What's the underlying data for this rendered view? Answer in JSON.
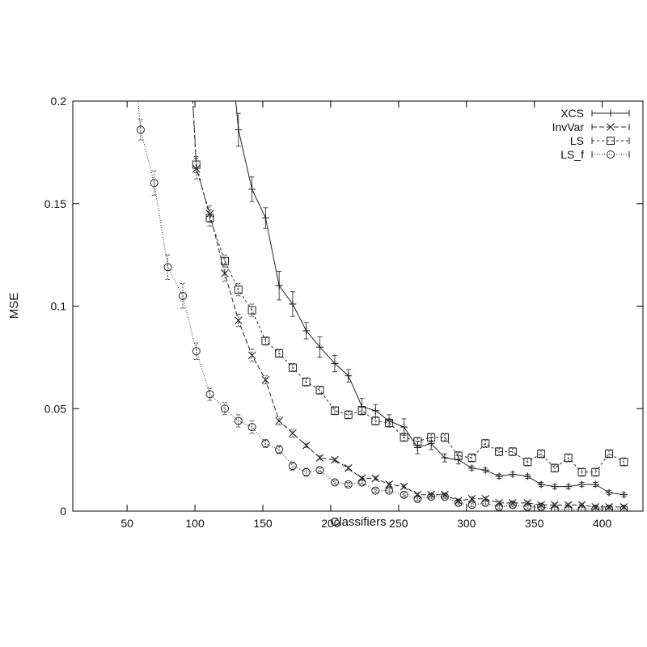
{
  "chart_data": {
    "type": "line",
    "title": "",
    "xlabel": "Classifiers",
    "ylabel": "MSE",
    "xlim": [
      10,
      430
    ],
    "ylim": [
      0,
      0.2
    ],
    "xticks": [
      50,
      100,
      150,
      200,
      250,
      300,
      350,
      400
    ],
    "yticks": [
      0,
      0.05,
      0.1,
      0.15,
      0.2
    ],
    "ytick_labels": [
      "0",
      "0.05",
      "0.1",
      "0.15",
      "0.2"
    ],
    "grid": false,
    "legend_position": "top-right",
    "series": [
      {
        "name": "XCS",
        "marker": "plus",
        "dash": "none",
        "x": [
          132,
          142,
          152,
          162,
          172,
          182,
          192,
          203,
          213,
          223,
          233,
          243,
          254,
          264,
          274,
          284,
          294,
          304,
          314,
          324,
          334,
          345,
          355,
          365,
          375,
          385,
          395,
          405,
          416
        ],
        "y": [
          0.186,
          0.157,
          0.143,
          0.11,
          0.101,
          0.088,
          0.08,
          0.072,
          0.066,
          0.051,
          0.049,
          0.044,
          0.041,
          0.031,
          0.033,
          0.026,
          0.025,
          0.021,
          0.02,
          0.017,
          0.018,
          0.017,
          0.013,
          0.012,
          0.012,
          0.013,
          0.013,
          0.009,
          0.008
        ],
        "err": [
          0.008,
          0.006,
          0.005,
          0.007,
          0.006,
          0.004,
          0.005,
          0.004,
          0.003,
          0.004,
          0.003,
          0.003,
          0.004,
          0.003,
          0.003,
          0.002,
          0.002,
          0.001,
          0.001,
          0.001,
          0.001,
          0.001,
          0.001,
          0.001,
          0.001,
          0.001,
          0.001,
          0.001,
          0.001
        ]
      },
      {
        "name": "InvVar",
        "marker": "x",
        "dash": "6,3",
        "x": [
          101,
          111,
          122,
          132,
          142,
          152,
          162,
          172,
          182,
          192,
          203,
          213,
          223,
          233,
          243,
          254,
          264,
          274,
          284,
          294,
          304,
          314,
          324,
          334,
          345,
          355,
          365,
          375,
          385,
          395,
          405,
          416
        ],
        "y": [
          0.167,
          0.145,
          0.116,
          0.093,
          0.076,
          0.064,
          0.044,
          0.038,
          0.032,
          0.026,
          0.025,
          0.021,
          0.016,
          0.016,
          0.013,
          0.012,
          0.008,
          0.008,
          0.008,
          0.005,
          0.006,
          0.006,
          0.004,
          0.004,
          0.004,
          0.003,
          0.003,
          0.003,
          0.003,
          0.002,
          0.002,
          0.002
        ],
        "err": [
          0.005,
          0.004,
          0.004,
          0.003,
          0.003,
          0.002,
          0.002,
          0.002,
          0.001,
          0.001,
          0.001,
          0.001,
          0.001,
          0.001,
          0.001,
          0.001,
          0.001,
          0.001,
          0.001,
          0.001,
          0.001,
          0.001,
          0.001,
          0.001,
          0.001,
          0.001,
          0.001,
          0.001,
          0.001,
          0.001,
          0.001,
          0.001
        ]
      },
      {
        "name": "LS",
        "marker": "square",
        "dash": "3,3",
        "x": [
          101,
          111,
          122,
          132,
          142,
          152,
          162,
          172,
          182,
          192,
          203,
          213,
          223,
          233,
          243,
          254,
          264,
          274,
          284,
          294,
          304,
          314,
          324,
          334,
          345,
          355,
          365,
          375,
          385,
          395,
          405,
          416
        ],
        "y": [
          0.169,
          0.143,
          0.122,
          0.108,
          0.098,
          0.083,
          0.077,
          0.07,
          0.063,
          0.059,
          0.049,
          0.047,
          0.049,
          0.044,
          0.043,
          0.036,
          0.034,
          0.036,
          0.036,
          0.027,
          0.026,
          0.033,
          0.029,
          0.029,
          0.024,
          0.028,
          0.021,
          0.026,
          0.019,
          0.019,
          0.028,
          0.024
        ],
        "err": [
          0.004,
          0.004,
          0.003,
          0.003,
          0.003,
          0.002,
          0.002,
          0.002,
          0.002,
          0.002,
          0.002,
          0.002,
          0.002,
          0.002,
          0.002,
          0.002,
          0.002,
          0.002,
          0.002,
          0.002,
          0.002,
          0.002,
          0.002,
          0.002,
          0.002,
          0.002,
          0.002,
          0.002,
          0.002,
          0.002,
          0.002,
          0.002
        ]
      },
      {
        "name": "LS_f",
        "marker": "circle",
        "dash": "1,2",
        "x": [
          60,
          70,
          80,
          91,
          101,
          111,
          122,
          132,
          142,
          152,
          162,
          172,
          182,
          192,
          203,
          213,
          223,
          233,
          243,
          254,
          264,
          274,
          284,
          294,
          304,
          314,
          324,
          334,
          345,
          355,
          365,
          375,
          385,
          395,
          405,
          416
        ],
        "y": [
          0.186,
          0.16,
          0.119,
          0.105,
          0.078,
          0.057,
          0.05,
          0.044,
          0.041,
          0.033,
          0.03,
          0.022,
          0.019,
          0.02,
          0.014,
          0.013,
          0.014,
          0.01,
          0.01,
          0.008,
          0.006,
          0.007,
          0.007,
          0.004,
          0.003,
          0.004,
          0.002,
          0.003,
          0.002,
          0.002,
          0.001,
          0.001,
          0.001,
          0.001,
          0.001,
          0.001
        ],
        "err": [
          0.005,
          0.006,
          0.006,
          0.006,
          0.004,
          0.003,
          0.003,
          0.003,
          0.003,
          0.002,
          0.002,
          0.002,
          0.002,
          0.001,
          0.001,
          0.001,
          0.001,
          0.001,
          0.001,
          0.001,
          0.001,
          0.001,
          0.001,
          0.001,
          0.001,
          0.001,
          0.001,
          0.001,
          0.001,
          0.001,
          0.001,
          0.001,
          0.001,
          0.001,
          0.001,
          0.001
        ]
      }
    ]
  }
}
